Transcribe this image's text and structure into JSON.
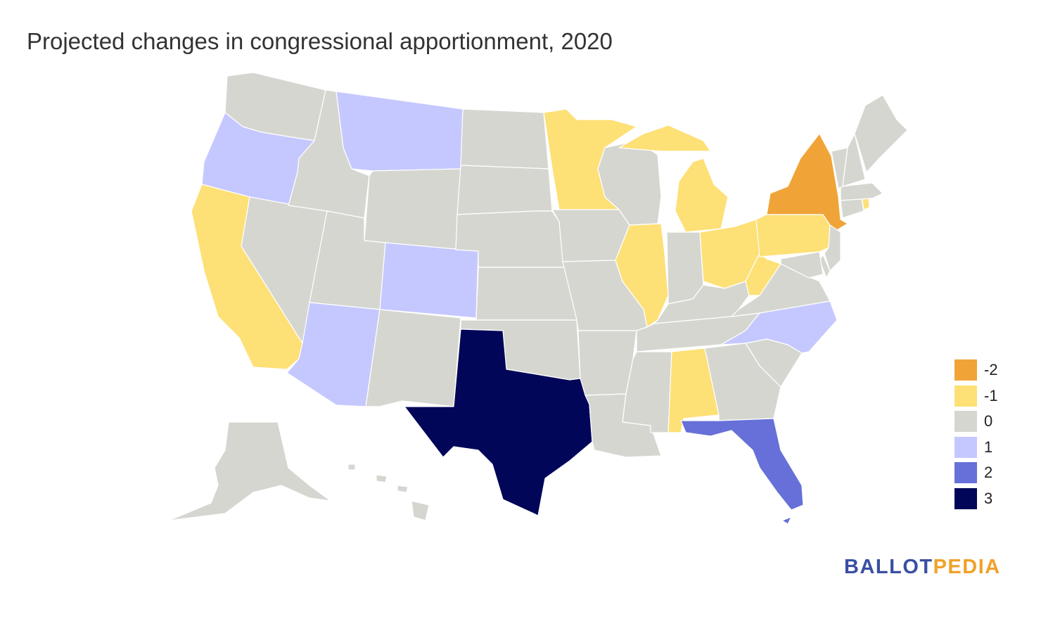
{
  "title": "Projected changes in congressional apportionment, 2020",
  "colors": {
    "-2": "#f0a437",
    "-1": "#fde076",
    "0": "#d6d6d1",
    "1": "#c5c8ff",
    "2": "#6670d8",
    "3": "#010658"
  },
  "legend": [
    {
      "label": "-2",
      "value": -2
    },
    {
      "label": "-1",
      "value": -1
    },
    {
      "label": "0",
      "value": 0
    },
    {
      "label": "1",
      "value": 1
    },
    {
      "label": "2",
      "value": 2
    },
    {
      "label": "3",
      "value": 3
    }
  ],
  "state_changes": {
    "WA": 0,
    "OR": 1,
    "CA": -1,
    "ID": 0,
    "NV": 0,
    "MT": 1,
    "WY": 0,
    "UT": 0,
    "AZ": 1,
    "CO": 1,
    "NM": 0,
    "ND": 0,
    "SD": 0,
    "NE": 0,
    "KS": 0,
    "OK": 0,
    "TX": 3,
    "MN": -1,
    "IA": 0,
    "MO": 0,
    "AR": 0,
    "LA": 0,
    "WI": 0,
    "IL": -1,
    "MI": -1,
    "IN": 0,
    "OH": -1,
    "KY": 0,
    "TN": 0,
    "MS": 0,
    "AL": -1,
    "GA": 0,
    "FL": 2,
    "SC": 0,
    "NC": 1,
    "VA": 0,
    "WV": -1,
    "PA": -1,
    "NY": -2,
    "NJ": 0,
    "DE": 0,
    "MD": 0,
    "CT": 0,
    "RI": -1,
    "MA": 0,
    "VT": 0,
    "NH": 0,
    "ME": 0,
    "AK": 0,
    "HI": 0
  },
  "brand": {
    "part1": "BALLOT",
    "part2": "PEDIA"
  }
}
